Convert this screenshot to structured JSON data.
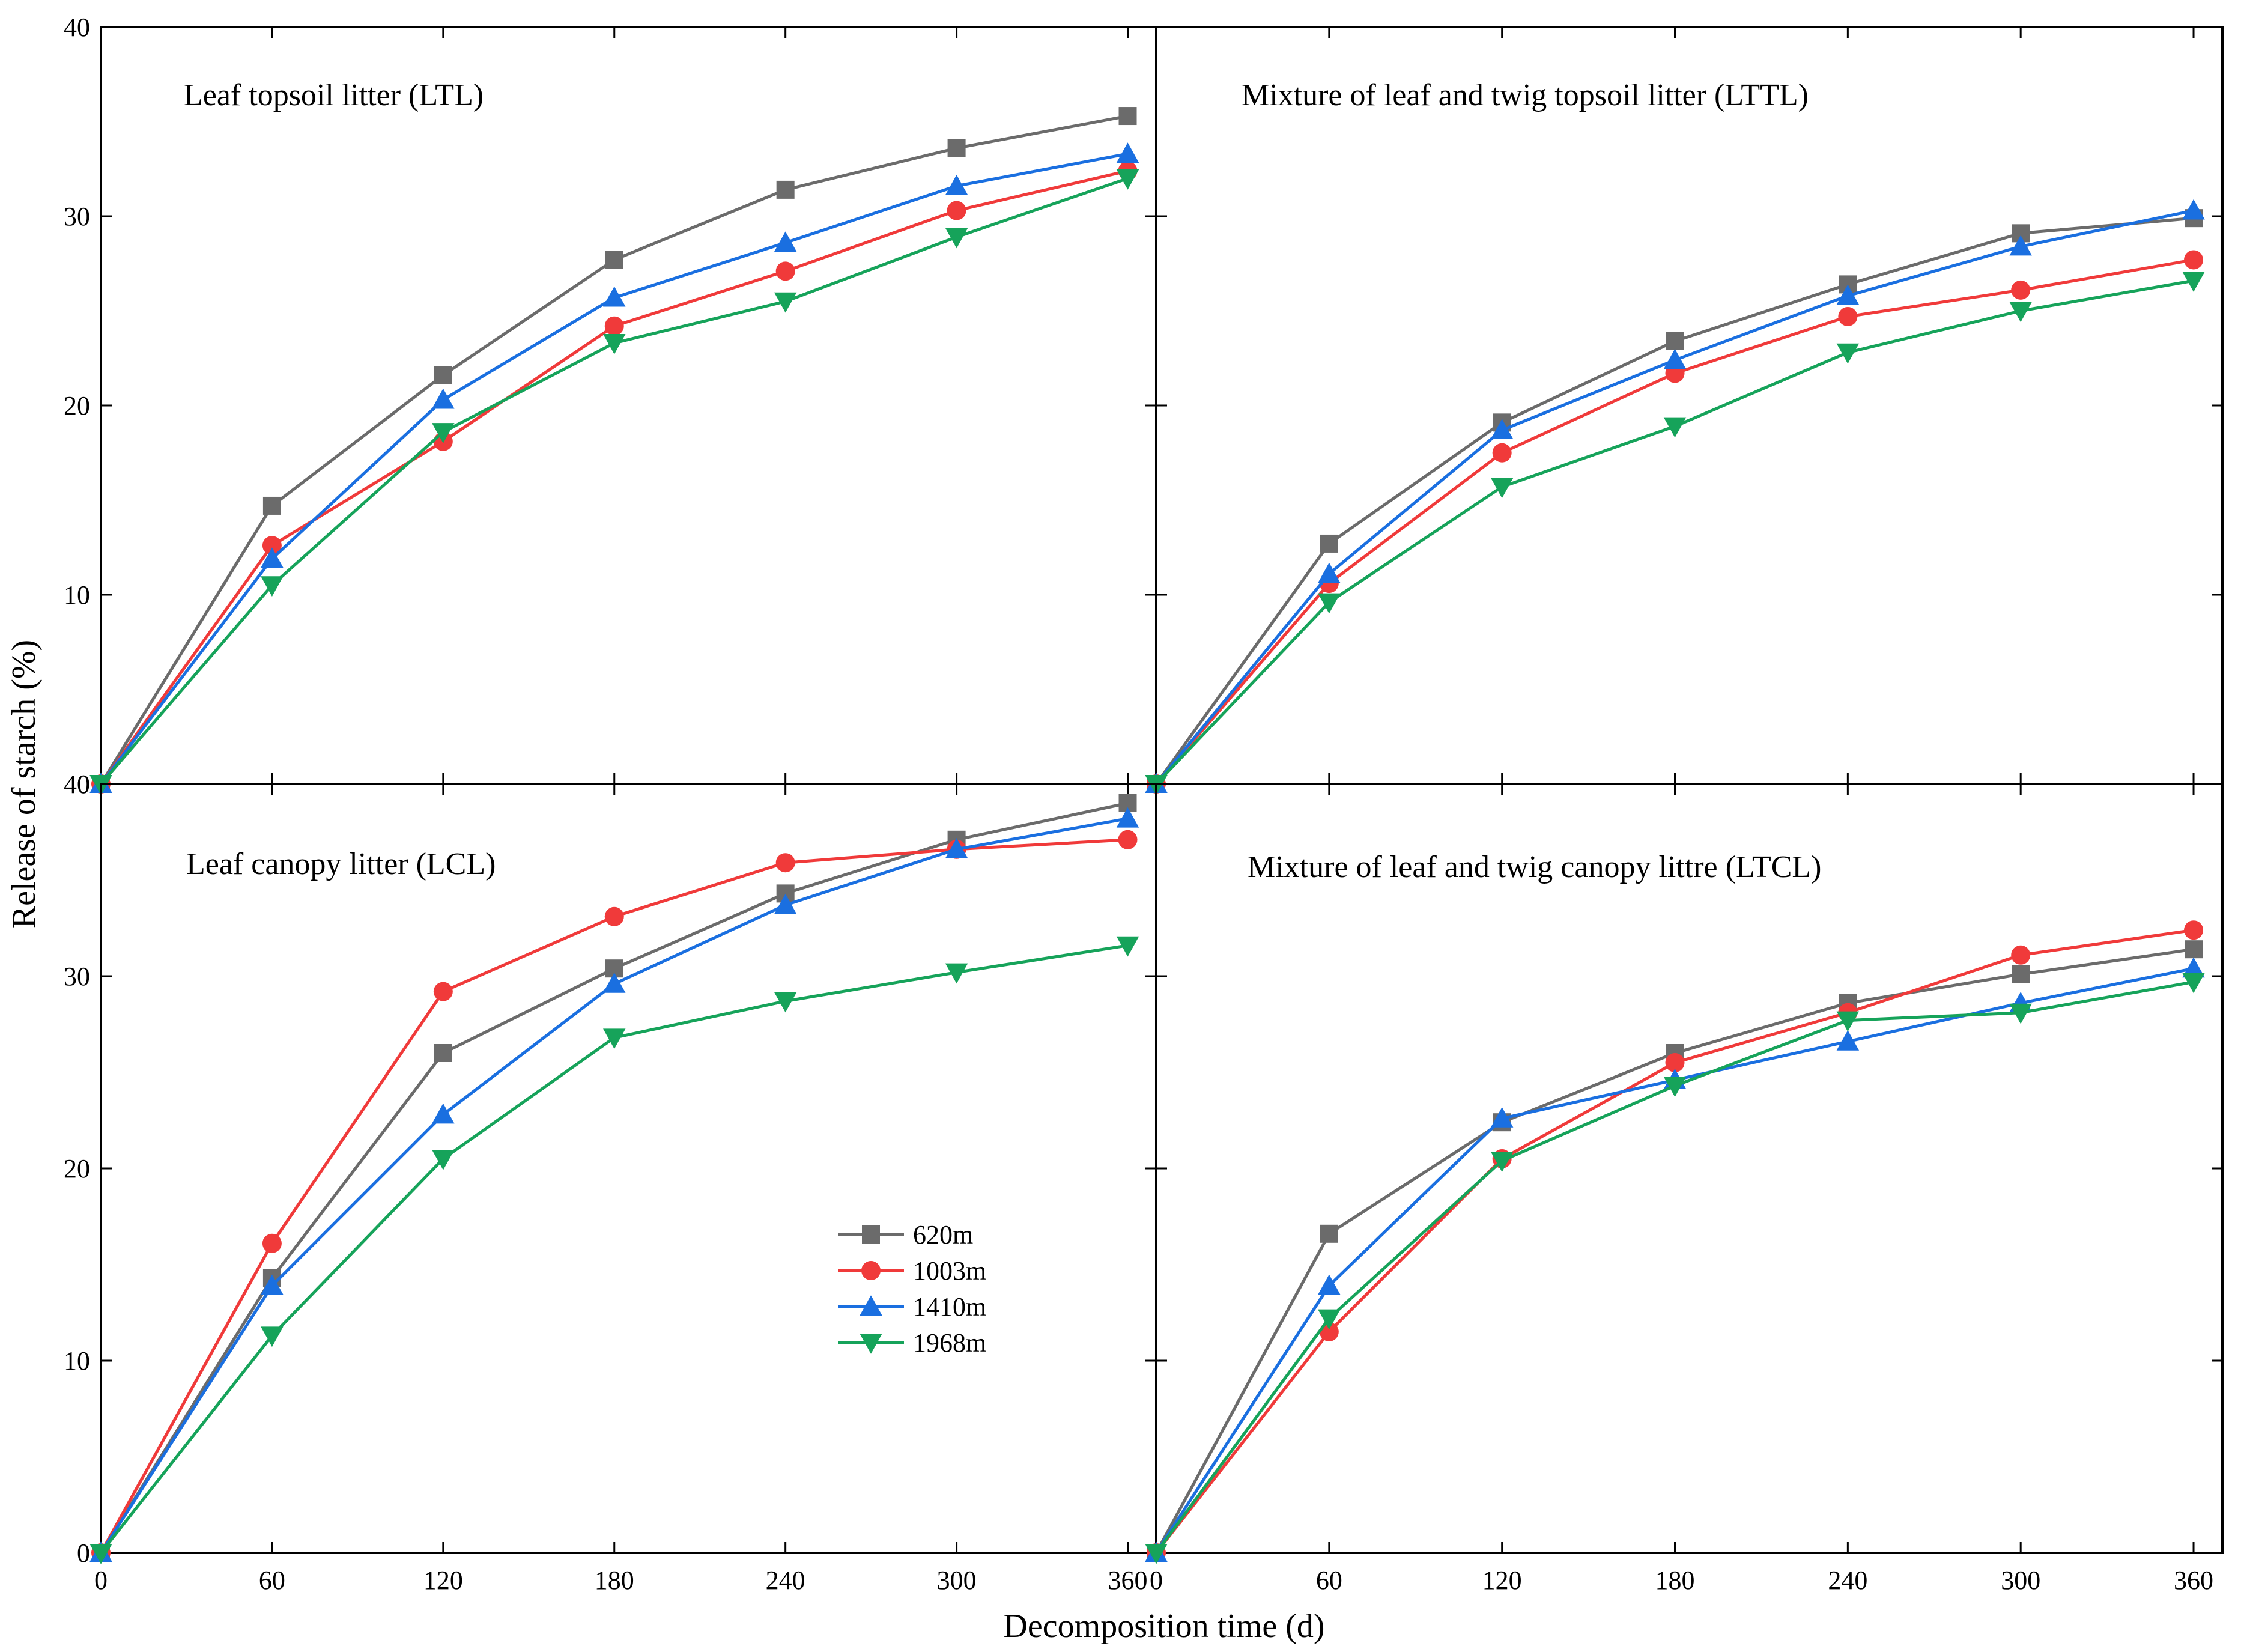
{
  "chart_data": {
    "type": "line",
    "ylabel": "Release of starch (%)",
    "xlabel": "Decomposition time (d)",
    "x": [
      0,
      60,
      120,
      180,
      240,
      300,
      360
    ],
    "x_tick_labels": [
      "0",
      "60",
      "120",
      "180",
      "240",
      "300",
      "360"
    ],
    "xlim": [
      0,
      370
    ],
    "ylim": [
      0,
      40
    ],
    "y_tick_labels": [
      "0",
      "10",
      "20",
      "30",
      "40"
    ],
    "series_styles": [
      {
        "name": "620m",
        "color": "#6b6b6b",
        "marker": "square"
      },
      {
        "name": "1003m",
        "color": "#f03a3a",
        "marker": "circle"
      },
      {
        "name": "1410m",
        "color": "#1a6fe0",
        "marker": "triangle-up"
      },
      {
        "name": "1968m",
        "color": "#16a35a",
        "marker": "triangle-down"
      }
    ],
    "legend": {
      "placement": "lower-middle of Leaf canopy litter panel",
      "entries": [
        "620m",
        "1003m",
        "1410m",
        "1968m"
      ]
    },
    "panels": [
      {
        "title": "Leaf topsoil litter (LTL)",
        "series": [
          {
            "name": "620m",
            "values": [
              0,
              14.7,
              21.6,
              27.7,
              31.4,
              33.6,
              35.3
            ]
          },
          {
            "name": "1003m",
            "values": [
              0,
              12.6,
              18.1,
              24.2,
              27.1,
              30.3,
              32.4
            ]
          },
          {
            "name": "1410m",
            "values": [
              0,
              11.9,
              20.3,
              25.7,
              28.6,
              31.6,
              33.3
            ]
          },
          {
            "name": "1968m",
            "values": [
              0,
              10.5,
              18.6,
              23.3,
              25.5,
              28.9,
              32.0
            ]
          }
        ]
      },
      {
        "title": "Mixture of leaf and twig topsoil litter (LTTL)",
        "series": [
          {
            "name": "620m",
            "values": [
              0,
              12.7,
              19.1,
              23.4,
              26.4,
              29.1,
              29.9
            ]
          },
          {
            "name": "1003m",
            "values": [
              0,
              10.6,
              17.5,
              21.7,
              24.7,
              26.1,
              27.7
            ]
          },
          {
            "name": "1410m",
            "values": [
              0,
              11.1,
              18.7,
              22.4,
              25.8,
              28.4,
              30.3
            ]
          },
          {
            "name": "1968m",
            "values": [
              0,
              9.6,
              15.7,
              18.9,
              22.8,
              25.0,
              26.6
            ]
          }
        ]
      },
      {
        "title": "Leaf canopy litter (LCL)",
        "series": [
          {
            "name": "620m",
            "values": [
              0,
              14.3,
              26.0,
              30.4,
              34.3,
              37.1,
              39.0
            ]
          },
          {
            "name": "1003m",
            "values": [
              0,
              16.1,
              29.2,
              33.1,
              35.9,
              36.6,
              37.1
            ]
          },
          {
            "name": "1410m",
            "values": [
              0,
              13.9,
              22.8,
              29.6,
              33.7,
              36.6,
              38.2
            ]
          },
          {
            "name": "1968m",
            "values": [
              0,
              11.3,
              20.5,
              26.8,
              28.7,
              30.2,
              31.6
            ]
          }
        ]
      },
      {
        "title": "Mixture of leaf and twig canopy littre (LTCL)",
        "series": [
          {
            "name": "620m",
            "values": [
              0,
              16.6,
              22.4,
              26.0,
              28.6,
              30.1,
              31.4
            ]
          },
          {
            "name": "1003m",
            "values": [
              0,
              11.5,
              20.5,
              25.5,
              28.1,
              31.1,
              32.4
            ]
          },
          {
            "name": "1410m",
            "values": [
              0,
              13.9,
              22.6,
              24.6,
              26.6,
              28.6,
              30.4
            ]
          },
          {
            "name": "1968m",
            "values": [
              0,
              12.2,
              20.4,
              24.3,
              27.7,
              28.1,
              29.7
            ]
          }
        ]
      }
    ]
  }
}
